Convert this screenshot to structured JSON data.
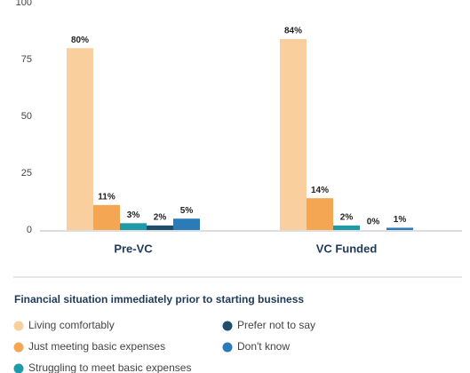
{
  "chart_data": {
    "type": "bar",
    "categories": [
      "Pre-VC",
      "VC Funded"
    ],
    "series": [
      {
        "name": "Living comfortably",
        "color": "#f9cf9e",
        "values": [
          80,
          84
        ],
        "value_labels": [
          "80%",
          "84%"
        ]
      },
      {
        "name": "Just meeting basic expenses",
        "color": "#f4a652",
        "values": [
          11,
          14
        ],
        "value_labels": [
          "11%",
          "14%"
        ]
      },
      {
        "name": "Struggling to meet basic expenses",
        "color": "#1e9aa8",
        "values": [
          3,
          2
        ],
        "value_labels": [
          "3%",
          "2%"
        ]
      },
      {
        "name": "Prefer not to say",
        "color": "#1d4e6e",
        "values": [
          2,
          0
        ],
        "value_labels": [
          "2%",
          "0%"
        ]
      },
      {
        "name": "Don't know",
        "color": "#2b7bb9",
        "values": [
          5,
          1
        ],
        "value_labels": [
          "5%",
          "1%"
        ]
      }
    ],
    "ylim": [
      0,
      100
    ],
    "yticks": [
      0,
      25,
      50,
      75,
      100
    ],
    "grid": false,
    "legend_title": "Financial situation immediately prior to starting business"
  }
}
